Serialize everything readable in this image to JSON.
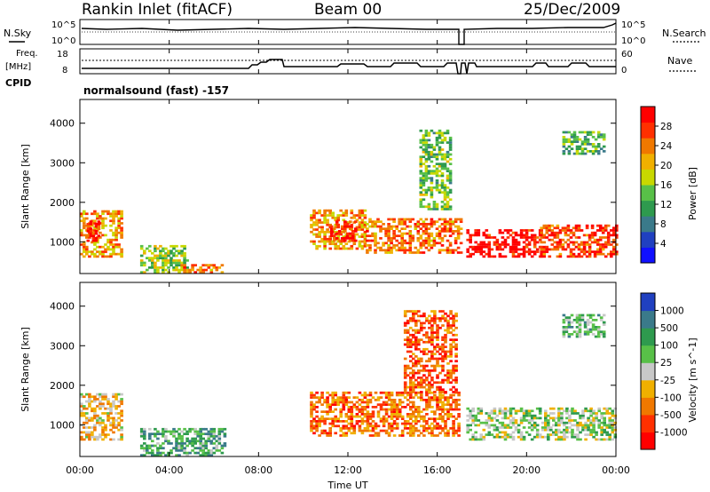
{
  "header": {
    "station": "Rankin Inlet (fitACF)",
    "beam": "Beam 00",
    "date": "25/Dec/2009"
  },
  "params": {
    "nsky_label": "N.Sky",
    "nsearch_label": "N.Search",
    "freq_label_1": "Freq.",
    "freq_label_2": "[MHz]",
    "nave_label": "Nave",
    "cpid_label": "CPID",
    "cpid_text": "normalsound (fast) -157",
    "noise_ticks_left": [
      "10^5",
      "10^0"
    ],
    "noise_ticks_right": [
      "10^5",
      "10^0"
    ],
    "freq_ticks": [
      "18",
      "8"
    ],
    "nave_ticks": [
      "60",
      "0"
    ]
  },
  "chart_data": [
    {
      "type": "heatmap",
      "title": "Power",
      "xlabel": "Time UT",
      "ylabel": "Slant Range [km]",
      "x_ticks": [
        "00:00",
        "04:00",
        "08:00",
        "12:00",
        "16:00",
        "20:00",
        "00:00"
      ],
      "y_ticks": [
        1000,
        2000,
        3000,
        4000
      ],
      "ylim": [
        200,
        4600
      ],
      "colorbar": {
        "label": "Power [dB]",
        "ticks": [
          4,
          8,
          12,
          16,
          20,
          24,
          28
        ],
        "colors": [
          "#1010ff",
          "#2040c0",
          "#3a7a8a",
          "#2e9a4e",
          "#58c048",
          "#c8d800",
          "#f0b000",
          "#f07800",
          "#ff3000",
          "#ff0000"
        ]
      },
      "regions": [
        {
          "t": [
            0.0,
            1.9
          ],
          "r": [
            600,
            1800
          ],
          "level": 0.7
        },
        {
          "t": [
            0.3,
            0.9
          ],
          "r": [
            1000,
            1500
          ],
          "level": 0.9
        },
        {
          "t": [
            2.7,
            4.8
          ],
          "r": [
            200,
            900
          ],
          "level": 0.5
        },
        {
          "t": [
            4.5,
            6.4
          ],
          "r": [
            200,
            400
          ],
          "level": 0.75
        },
        {
          "t": [
            10.3,
            12.8
          ],
          "r": [
            800,
            1800
          ],
          "level": 0.7
        },
        {
          "t": [
            11.2,
            12.3
          ],
          "r": [
            1000,
            1500
          ],
          "level": 0.9
        },
        {
          "t": [
            12.8,
            17.0
          ],
          "r": [
            700,
            1600
          ],
          "level": 0.75
        },
        {
          "t": [
            17.3,
            20.6
          ],
          "r": [
            600,
            1300
          ],
          "level": 0.95
        },
        {
          "t": [
            20.6,
            24.0
          ],
          "r": [
            600,
            1400
          ],
          "level": 0.85
        },
        {
          "t": [
            15.2,
            16.6
          ],
          "r": [
            1800,
            3800
          ],
          "level": 0.45
        },
        {
          "t": [
            21.6,
            23.5
          ],
          "r": [
            3200,
            3800
          ],
          "level": 0.4
        }
      ]
    },
    {
      "type": "heatmap",
      "title": "Velocity",
      "xlabel": "Time UT",
      "ylabel": "Slant Range [km]",
      "x_ticks": [
        "00:00",
        "04:00",
        "08:00",
        "12:00",
        "16:00",
        "20:00",
        "00:00"
      ],
      "y_ticks": [
        1000,
        2000,
        3000,
        4000
      ],
      "ylim": [
        200,
        4600
      ],
      "colorbar": {
        "label": "Velocity [m s^-1]",
        "ticks": [
          "1000",
          "500",
          "100",
          "25",
          "-25",
          "-100",
          "-500",
          "-1000"
        ],
        "colors": [
          "#2040c0",
          "#3a7a8a",
          "#2e9a4e",
          "#58c048",
          "#c8c8c8",
          "#f0b000",
          "#f07800",
          "#ff3000",
          "#ff0000"
        ]
      },
      "regions": [
        {
          "t": [
            0.0,
            1.9
          ],
          "r": [
            600,
            1800
          ],
          "level": 0.6
        },
        {
          "t": [
            2.7,
            6.5
          ],
          "r": [
            200,
            900
          ],
          "level": 0.3
        },
        {
          "t": [
            10.3,
            17.0
          ],
          "r": [
            700,
            1800
          ],
          "level": 0.75
        },
        {
          "t": [
            17.3,
            24.0
          ],
          "r": [
            600,
            1400
          ],
          "level": 0.45
        },
        {
          "t": [
            14.5,
            16.8
          ],
          "r": [
            1800,
            3900
          ],
          "level": 0.8
        },
        {
          "t": [
            21.6,
            23.5
          ],
          "r": [
            3200,
            3800
          ],
          "level": 0.35
        }
      ]
    }
  ]
}
